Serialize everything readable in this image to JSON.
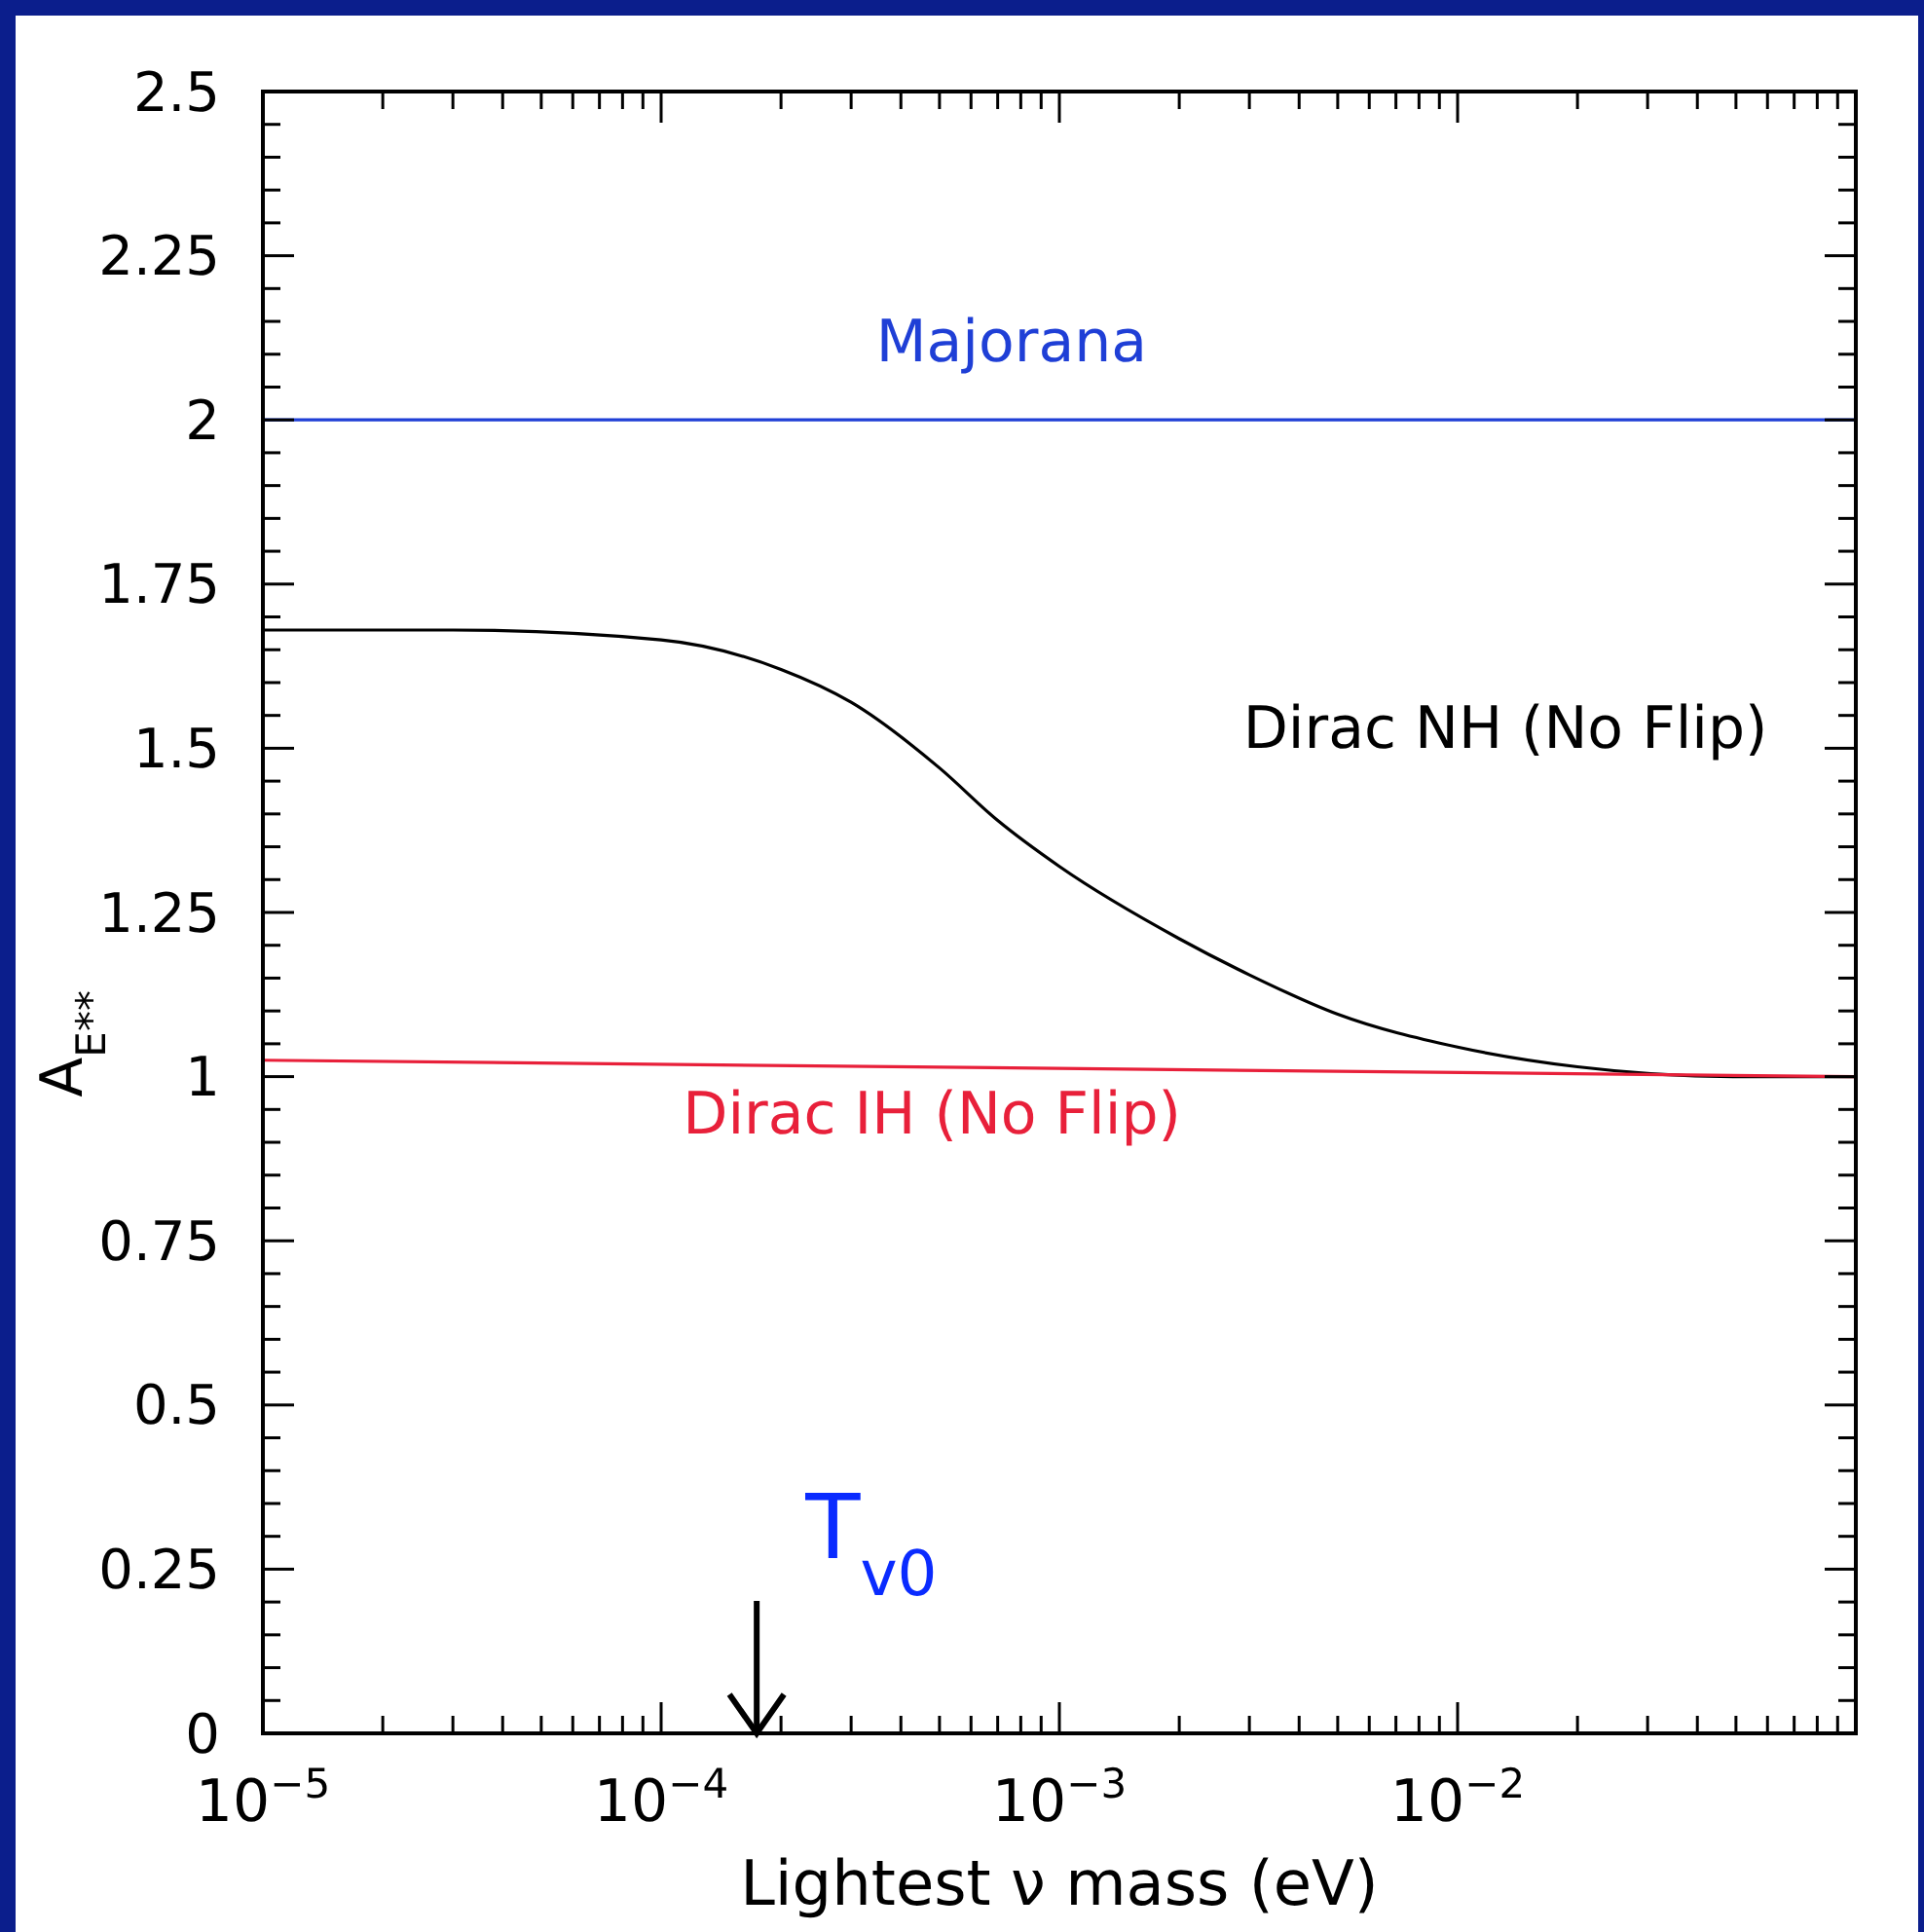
{
  "chart_data": {
    "type": "line",
    "xlabel": "Lightest ν mass (eV)",
    "ylabel": "A$_{E**}$",
    "log": "x",
    "grid": false,
    "line_style": "solid",
    "xlim": [
      1e-05,
      0.1
    ],
    "ylim": [
      0,
      2.5
    ],
    "xticks": [
      {
        "value": 1e-05,
        "label": "10$^{−5}$"
      },
      {
        "value": 2e-05,
        "label": null
      },
      {
        "value": 3e-05,
        "label": null
      },
      {
        "value": 4e-05,
        "label": null
      },
      {
        "value": 5e-05,
        "label": null
      },
      {
        "value": 6e-05,
        "label": null
      },
      {
        "value": 7e-05,
        "label": null
      },
      {
        "value": 8e-05,
        "label": null
      },
      {
        "value": 9e-05,
        "label": null
      },
      {
        "value": 0.0001,
        "label": "10$^{−4}$"
      },
      {
        "value": 0.0002,
        "label": null
      },
      {
        "value": 0.0003,
        "label": null
      },
      {
        "value": 0.0004,
        "label": null
      },
      {
        "value": 0.0005,
        "label": null
      },
      {
        "value": 0.0006,
        "label": null
      },
      {
        "value": 0.0007,
        "label": null
      },
      {
        "value": 0.0008,
        "label": null
      },
      {
        "value": 0.0009,
        "label": null
      },
      {
        "value": 0.001,
        "label": "10$^{−3}$"
      },
      {
        "value": 0.002,
        "label": null
      },
      {
        "value": 0.003,
        "label": null
      },
      {
        "value": 0.004,
        "label": null
      },
      {
        "value": 0.005,
        "label": null
      },
      {
        "value": 0.006,
        "label": null
      },
      {
        "value": 0.007,
        "label": null
      },
      {
        "value": 0.008,
        "label": null
      },
      {
        "value": 0.009,
        "label": null
      },
      {
        "value": 0.01,
        "label": "10$^{−2}$"
      },
      {
        "value": 0.02,
        "label": null
      },
      {
        "value": 0.03,
        "label": null
      },
      {
        "value": 0.04,
        "label": null
      },
      {
        "value": 0.05,
        "label": null
      },
      {
        "value": 0.06,
        "label": null
      },
      {
        "value": 0.07,
        "label": null
      },
      {
        "value": 0.08,
        "label": null
      },
      {
        "value": 0.09,
        "label": null
      },
      {
        "value": 0.1,
        "label": null
      }
    ],
    "yticks": [
      0,
      0.25,
      0.5,
      0.75,
      1,
      1.25,
      1.5,
      1.75,
      2,
      2.25,
      2.5,
      {
        "value": 0.05,
        "label": null
      },
      {
        "value": 0.1,
        "label": null
      },
      {
        "value": 0.15,
        "label": null
      },
      {
        "value": 0.2,
        "label": null
      },
      {
        "value": 0.3,
        "label": null
      },
      {
        "value": 0.35,
        "label": null
      },
      {
        "value": 0.4,
        "label": null
      },
      {
        "value": 0.45,
        "label": null
      },
      {
        "value": 0.55,
        "label": null
      },
      {
        "value": 0.6,
        "label": null
      },
      {
        "value": 0.65,
        "label": null
      },
      {
        "value": 0.7,
        "label": null
      },
      {
        "value": 0.8,
        "label": null
      },
      {
        "value": 0.85,
        "label": null
      },
      {
        "value": 0.9,
        "label": null
      },
      {
        "value": 0.95,
        "label": null
      },
      {
        "value": 1.05,
        "label": null
      },
      {
        "value": 1.1,
        "label": null
      },
      {
        "value": 1.15,
        "label": null
      },
      {
        "value": 1.2,
        "label": null
      },
      {
        "value": 1.3,
        "label": null
      },
      {
        "value": 1.35,
        "label": null
      },
      {
        "value": 1.4,
        "label": null
      },
      {
        "value": 1.45,
        "label": null
      },
      {
        "value": 1.55,
        "label": null
      },
      {
        "value": 1.6,
        "label": null
      },
      {
        "value": 1.65,
        "label": null
      },
      {
        "value": 1.7,
        "label": null
      },
      {
        "value": 1.8,
        "label": null
      },
      {
        "value": 1.85,
        "label": null
      },
      {
        "value": 1.9,
        "label": null
      },
      {
        "value": 1.95,
        "label": null
      },
      {
        "value": 2.05,
        "label": null
      },
      {
        "value": 2.1,
        "label": null
      },
      {
        "value": 2.15,
        "label": null
      },
      {
        "value": 2.2,
        "label": null
      },
      {
        "value": 2.3,
        "label": null
      },
      {
        "value": 2.35,
        "label": null
      },
      {
        "value": 2.4,
        "label": null
      },
      {
        "value": 2.45,
        "label": null
      }
    ],
    "series": [
      {
        "name": "Majorana",
        "color": "#1f3fd6",
        "x": [
          1e-05,
          0.1
        ],
        "values": [
          2,
          2
        ]
      },
      {
        "name": "Dirac NH (No Flip)",
        "color": "#000000",
        "x": [
          1e-05,
          3e-05,
          0.0001,
          0.0002,
          0.0003,
          0.0005,
          0.0007,
          0.001,
          0.002,
          0.003,
          0.005,
          0.01,
          0.02,
          0.05,
          0.1
        ],
        "values": [
          1.68,
          1.68,
          1.665,
          1.62,
          1.57,
          1.47,
          1.39,
          1.32,
          1.21,
          1.155,
          1.095,
          1.045,
          1.015,
          1.0,
          1.0
        ]
      },
      {
        "name": "Dirac IH (No Flip)",
        "color": "#e8203a",
        "x": [
          1e-05,
          0.1
        ],
        "values": [
          1.025,
          1.0
        ]
      }
    ],
    "annotations": [
      "T$_{v0}$"
    ]
  }
}
